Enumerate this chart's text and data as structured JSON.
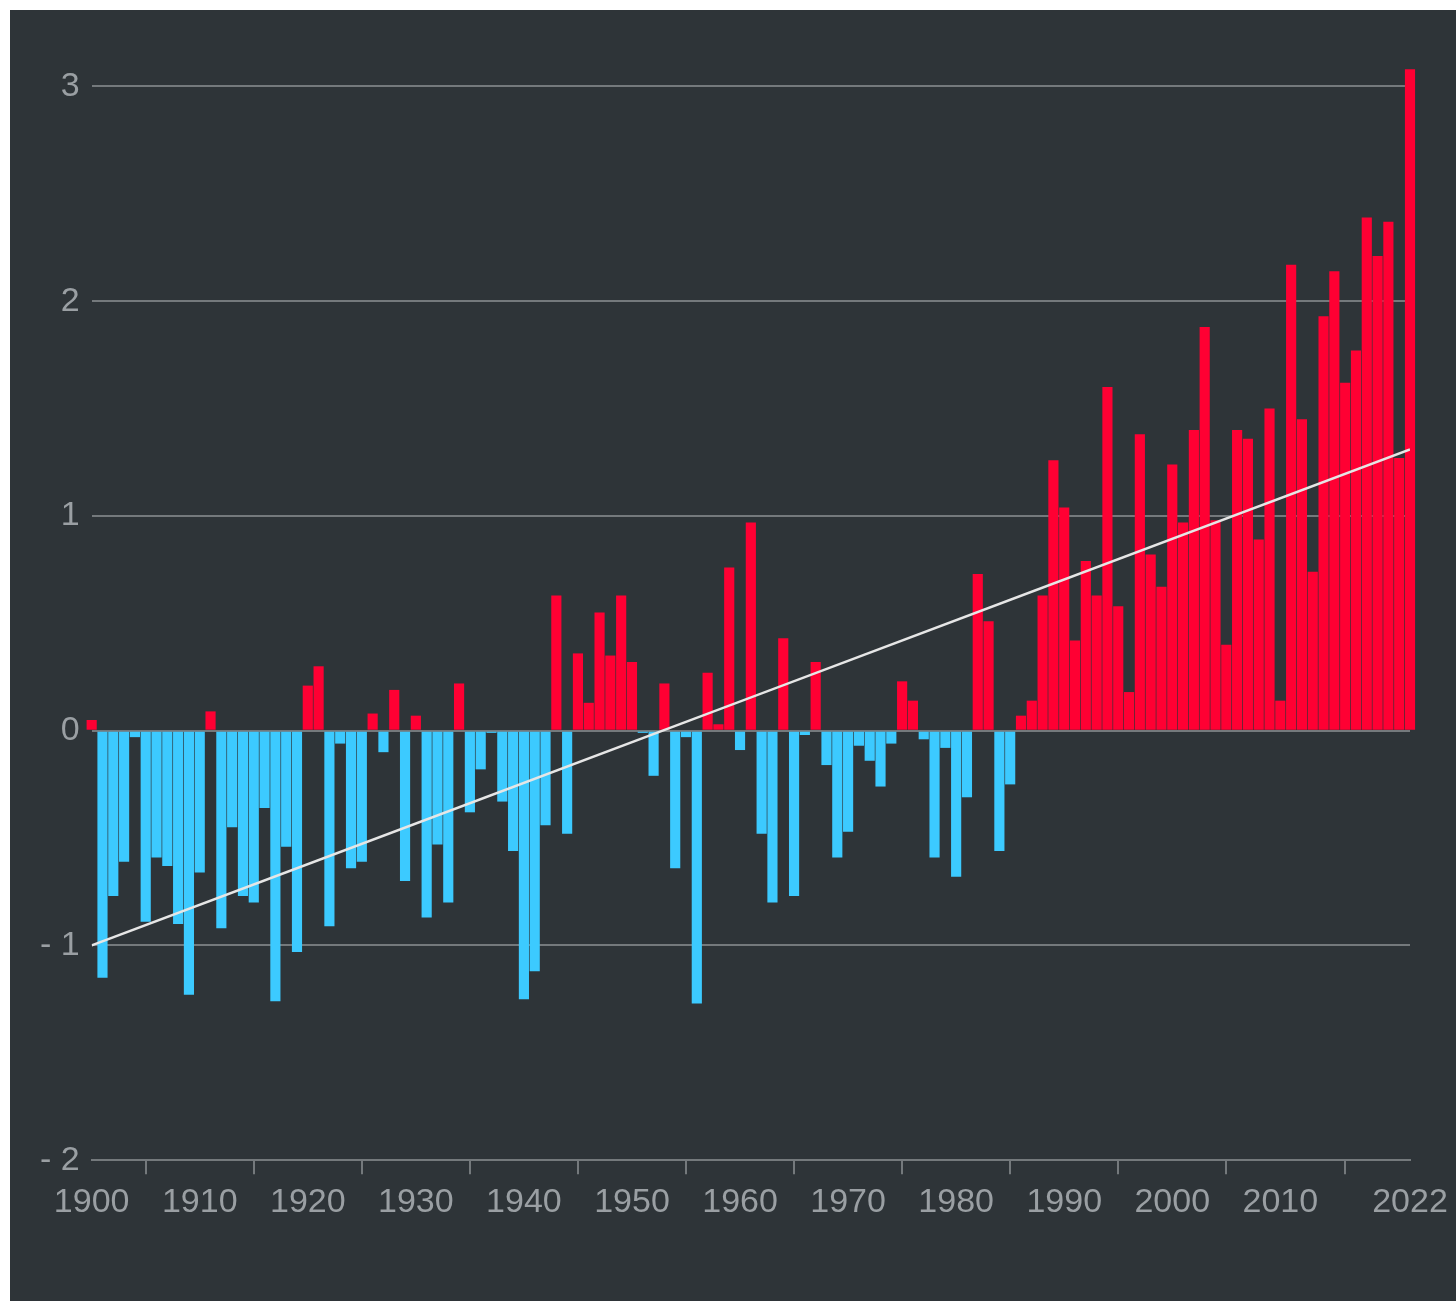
{
  "chart_data": {
    "type": "bar",
    "x": [
      1900,
      1901,
      1902,
      1903,
      1904,
      1905,
      1906,
      1907,
      1908,
      1909,
      1910,
      1911,
      1912,
      1913,
      1914,
      1915,
      1916,
      1917,
      1918,
      1919,
      1920,
      1921,
      1922,
      1923,
      1924,
      1925,
      1926,
      1927,
      1928,
      1929,
      1930,
      1931,
      1932,
      1933,
      1934,
      1935,
      1936,
      1937,
      1938,
      1939,
      1940,
      1941,
      1942,
      1943,
      1944,
      1945,
      1946,
      1947,
      1948,
      1949,
      1950,
      1951,
      1952,
      1953,
      1954,
      1955,
      1956,
      1957,
      1958,
      1959,
      1960,
      1961,
      1962,
      1963,
      1964,
      1965,
      1966,
      1967,
      1968,
      1969,
      1970,
      1971,
      1972,
      1973,
      1974,
      1975,
      1976,
      1977,
      1978,
      1979,
      1980,
      1981,
      1982,
      1983,
      1984,
      1985,
      1986,
      1987,
      1988,
      1989,
      1990,
      1991,
      1992,
      1993,
      1994,
      1995,
      1996,
      1997,
      1998,
      1999,
      2000,
      2001,
      2002,
      2003,
      2004,
      2005,
      2006,
      2007,
      2008,
      2009,
      2010,
      2011,
      2012,
      2013,
      2014,
      2015,
      2016,
      2017,
      2018,
      2019,
      2020,
      2021,
      2022
    ],
    "xlim": [
      1900,
      2022
    ],
    "xticks": [
      1900,
      1910,
      1920,
      1930,
      1940,
      1950,
      1960,
      1970,
      1980,
      1990,
      2000,
      2010,
      2022
    ],
    "ylim": [
      -2,
      3.1
    ],
    "yticks": [
      {
        "value": -2,
        "label": "- 2"
      },
      {
        "value": -1,
        "label": "- 1"
      },
      0,
      1,
      2,
      3
    ],
    "grid": "y",
    "series": [
      {
        "values": [
          0.05,
          -1.15,
          -0.77,
          -0.61,
          -0.03,
          -0.89,
          -0.59,
          -0.63,
          -0.9,
          -1.23,
          -0.66,
          0.09,
          -0.92,
          -0.45,
          -0.77,
          -0.8,
          -0.36,
          -1.26,
          -0.54,
          -1.03,
          0.21,
          0.3,
          -0.91,
          -0.06,
          -0.64,
          -0.61,
          0.08,
          -0.1,
          0.19,
          -0.7,
          0.07,
          -0.87,
          -0.53,
          -0.8,
          0.22,
          -0.38,
          -0.18,
          -0.01,
          -0.33,
          -0.56,
          -1.25,
          -1.12,
          -0.44,
          0.63,
          -0.48,
          0.36,
          0.13,
          0.55,
          0.35,
          0.63,
          0.32,
          -0.01,
          -0.21,
          0.22,
          -0.64,
          -0.03,
          -1.27,
          0.27,
          0.03,
          0.76,
          -0.09,
          0.97,
          -0.48,
          -0.8,
          0.43,
          -0.77,
          -0.02,
          0.32,
          -0.16,
          -0.59,
          -0.47,
          -0.07,
          -0.14,
          -0.26,
          -0.06,
          0.23,
          0.14,
          -0.04,
          -0.59,
          -0.08,
          -0.68,
          -0.31,
          0.73,
          0.51,
          -0.56,
          -0.25,
          0.07,
          0.14,
          0.63,
          1.26,
          1.04,
          0.42,
          0.79,
          0.63,
          1.6,
          0.58,
          0.18,
          1.38,
          0.82,
          0.67,
          1.24,
          0.97,
          1.4,
          1.88,
          0.98,
          0.4,
          1.4,
          1.36,
          0.89,
          1.5,
          0.14,
          2.17,
          1.45,
          0.74,
          1.93,
          2.14,
          1.62,
          1.77,
          2.39,
          2.21,
          2.37,
          1.27,
          3.08
        ],
        "colors": [
          "#ff0033",
          "#3ccaff",
          "#3ccaff",
          "#3ccaff",
          "#3ccaff",
          "#3ccaff",
          "#3ccaff",
          "#3ccaff",
          "#3ccaff",
          "#3ccaff",
          "#3ccaff",
          "#ff0033",
          "#3ccaff",
          "#3ccaff",
          "#3ccaff",
          "#3ccaff",
          "#3ccaff",
          "#3ccaff",
          "#3ccaff",
          "#3ccaff",
          "#ff0033",
          "#ff0033",
          "#3ccaff",
          "#3ccaff",
          "#3ccaff",
          "#3ccaff",
          "#ff0033",
          "#3ccaff",
          "#ff0033",
          "#3ccaff",
          "#ff0033",
          "#3ccaff",
          "#3ccaff",
          "#3ccaff",
          "#ff0033",
          "#3ccaff",
          "#3ccaff",
          "#3ccaff",
          "#3ccaff",
          "#3ccaff",
          "#3ccaff",
          "#3ccaff",
          "#3ccaff",
          "#ff0033",
          "#3ccaff",
          "#ff0033",
          "#ff0033",
          "#ff0033",
          "#ff0033",
          "#ff0033",
          "#ff0033",
          "#3ccaff",
          "#3ccaff",
          "#ff0033",
          "#3ccaff",
          "#3ccaff",
          "#3ccaff",
          "#ff0033",
          "#ff0033",
          "#ff0033",
          "#3ccaff",
          "#ff0033",
          "#3ccaff",
          "#3ccaff",
          "#ff0033",
          "#3ccaff",
          "#3ccaff",
          "#ff0033",
          "#3ccaff",
          "#3ccaff",
          "#3ccaff",
          "#3ccaff",
          "#3ccaff",
          "#3ccaff",
          "#3ccaff",
          "#ff0033",
          "#ff0033",
          "#3ccaff",
          "#3ccaff",
          "#3ccaff",
          "#3ccaff",
          "#3ccaff",
          "#ff0033",
          "#ff0033",
          "#3ccaff",
          "#3ccaff",
          "#ff0033",
          "#ff0033",
          "#ff0033",
          "#ff0033",
          "#ff0033",
          "#ff0033",
          "#ff0033",
          "#ff0033",
          "#ff0033",
          "#ff0033",
          "#ff0033",
          "#ff0033",
          "#ff0033",
          "#ff0033",
          "#ff0033",
          "#ff0033",
          "#ff0033",
          "#ff0033",
          "#ff0033",
          "#ff0033",
          "#ff0033",
          "#ff0033",
          "#ff0033",
          "#ff0033",
          "#ff0033",
          "#ff0033",
          "#ff0033",
          "#ff0033",
          "#ff0033",
          "#ff0033",
          "#ff0033",
          "#ff0033",
          "#ff0033",
          "#ff0033",
          "#ff0033",
          "#ff0033",
          "#ff0033"
        ]
      },
      {
        "type": "line",
        "x": [
          1900,
          2022
        ],
        "values": [
          -1,
          1.31
        ],
        "color": "#e6e6e6"
      }
    ]
  }
}
